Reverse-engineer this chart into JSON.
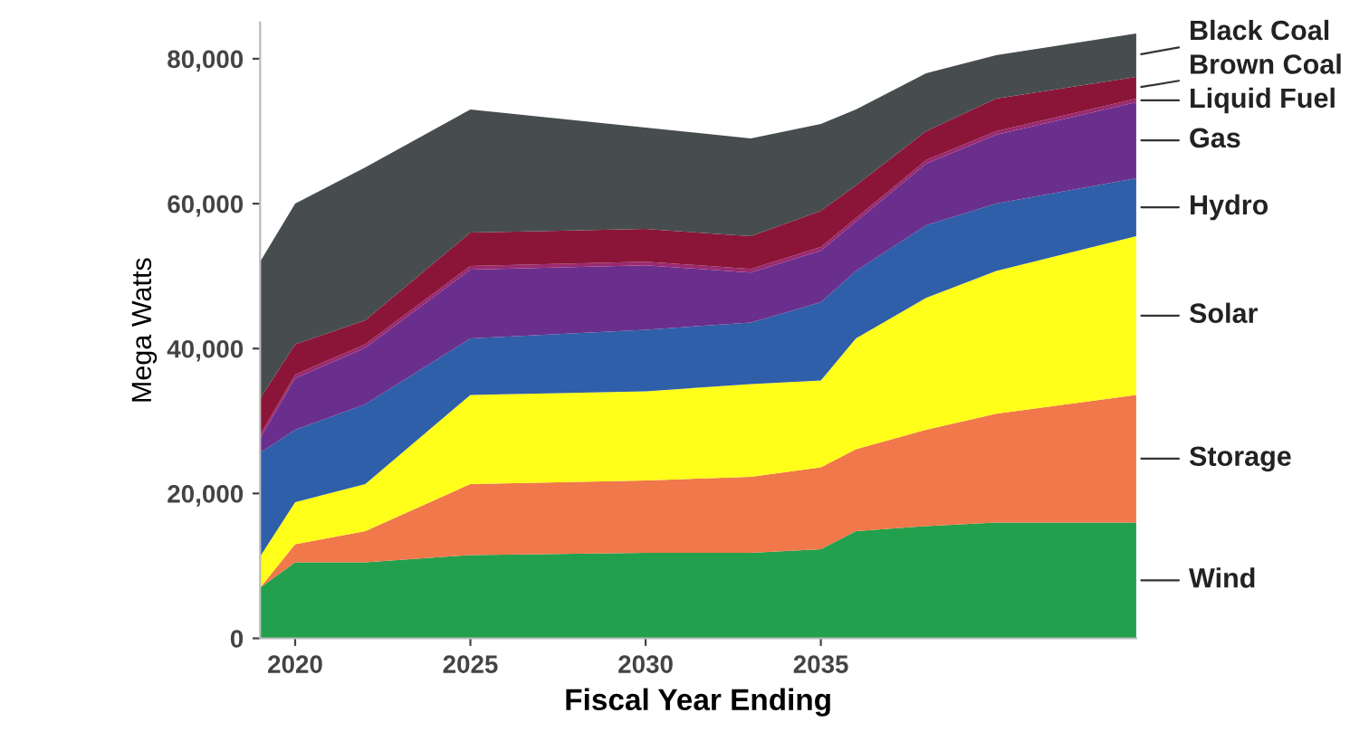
{
  "chart_data": {
    "type": "area",
    "stacked": true,
    "xlabel": "Fiscal Year Ending",
    "ylabel": "Mega Watts",
    "x": [
      2019,
      2020,
      2022,
      2025,
      2030,
      2033,
      2035,
      2036,
      2038,
      2040,
      2044
    ],
    "xlim": [
      2019,
      2044
    ],
    "xticks": [
      2020,
      2025,
      2030,
      2035
    ],
    "ylim": [
      0,
      85000
    ],
    "yticks": [
      {
        "value": 0,
        "label": "0"
      },
      {
        "value": 20000,
        "label": "20,000"
      },
      {
        "value": 40000,
        "label": "40,000"
      },
      {
        "value": 60000,
        "label": "60,000"
      },
      {
        "value": 80000,
        "label": "80,000"
      }
    ],
    "grid": false,
    "legend": false,
    "series": [
      {
        "name": "Wind",
        "color": "#23a04d",
        "values": [
          7000,
          10500,
          10500,
          11500,
          11800,
          11800,
          12300,
          14800,
          15500,
          16000,
          16000
        ]
      },
      {
        "name": "Storage",
        "color": "#f0784a",
        "values": [
          0,
          2500,
          4300,
          9800,
          10000,
          10500,
          11300,
          11300,
          13300,
          15000,
          17600
        ]
      },
      {
        "name": "Solar",
        "color": "#ffff1a",
        "values": [
          4300,
          5800,
          6500,
          12300,
          12300,
          12800,
          12000,
          15300,
          18200,
          19700,
          21900
        ]
      },
      {
        "name": "Hydro",
        "color": "#2f5fa8",
        "values": [
          14300,
          10000,
          11000,
          7800,
          8500,
          8500,
          10800,
          9300,
          10000,
          9300,
          8000
        ]
      },
      {
        "name": "Gas",
        "color": "#6a2f8c",
        "values": [
          2000,
          7100,
          7800,
          9500,
          8900,
          6900,
          7100,
          6800,
          8500,
          9500,
          10500
        ]
      },
      {
        "name": "Liquid Fuel",
        "color": "#9a2a70",
        "values": [
          500,
          500,
          500,
          500,
          500,
          500,
          500,
          500,
          500,
          500,
          500
        ]
      },
      {
        "name": "Brown Coal",
        "color": "#8b1538",
        "values": [
          5000,
          4200,
          3300,
          4600,
          4500,
          4500,
          5000,
          4500,
          4000,
          4500,
          3000
        ]
      },
      {
        "name": "Black Coal",
        "color": "#474d4f",
        "values": [
          18900,
          19400,
          21100,
          17000,
          14000,
          13500,
          12000,
          10500,
          8000,
          6000,
          6000
        ]
      }
    ]
  }
}
